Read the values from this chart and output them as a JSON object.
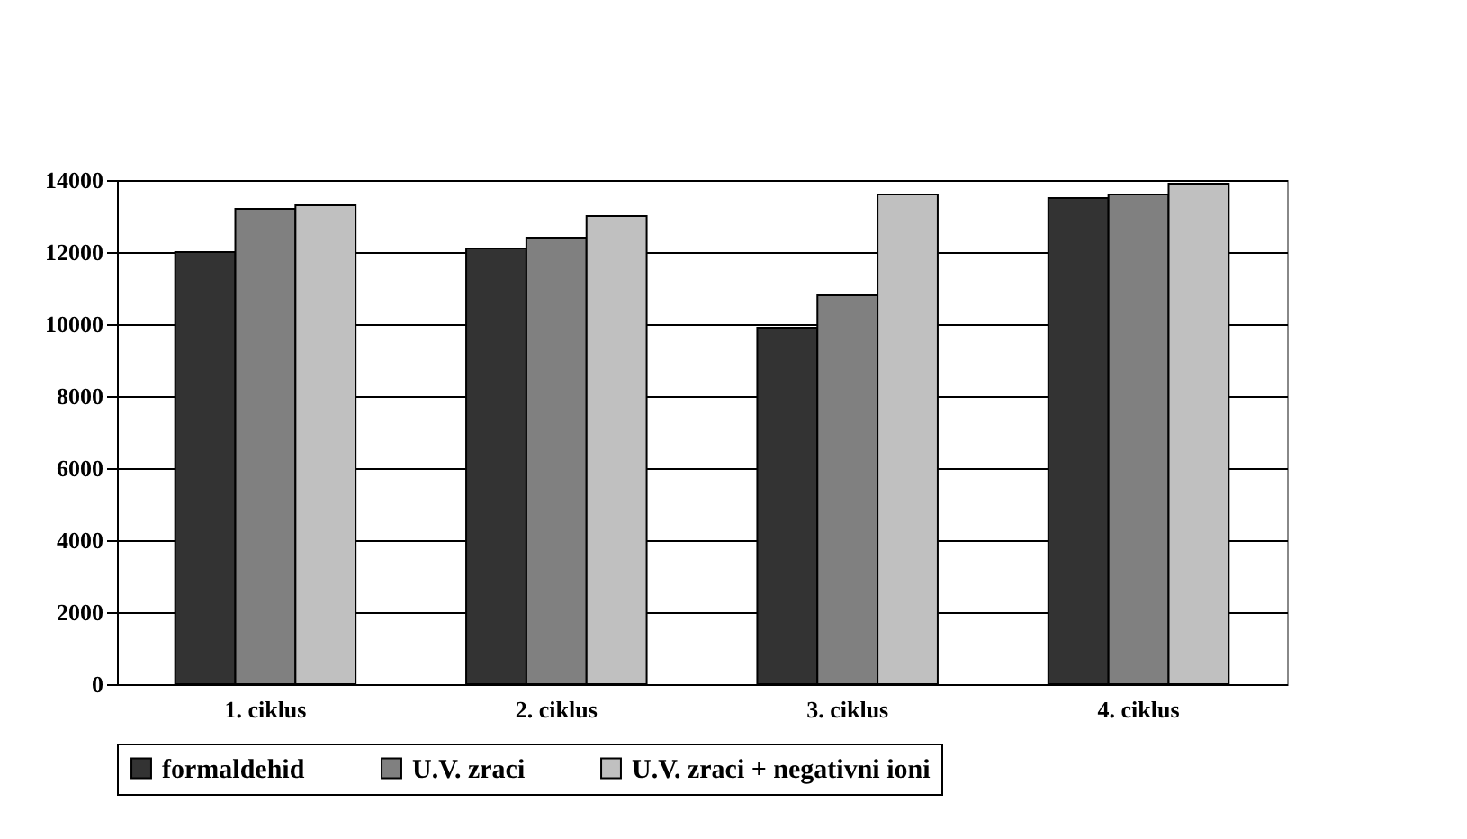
{
  "chart_data": {
    "type": "bar",
    "categories": [
      "1. ciklus",
      "2. ciklus",
      "3. ciklus",
      "4. ciklus"
    ],
    "series": [
      {
        "name": "formaldehid",
        "color": "#333333",
        "values": [
          12000,
          12100,
          9900,
          13500
        ]
      },
      {
        "name": "U.V. zraci",
        "color": "#808080",
        "values": [
          13200,
          12400,
          10800,
          13600
        ]
      },
      {
        "name": "U.V. zraci + negativni ioni",
        "color": "#c0c0c0",
        "values": [
          13300,
          13000,
          13600,
          13900
        ]
      }
    ],
    "ylim": [
      0,
      14000
    ],
    "yticks": [
      0,
      2000,
      4000,
      6000,
      8000,
      10000,
      12000,
      14000
    ],
    "grid": "y",
    "legend": "bottom"
  }
}
